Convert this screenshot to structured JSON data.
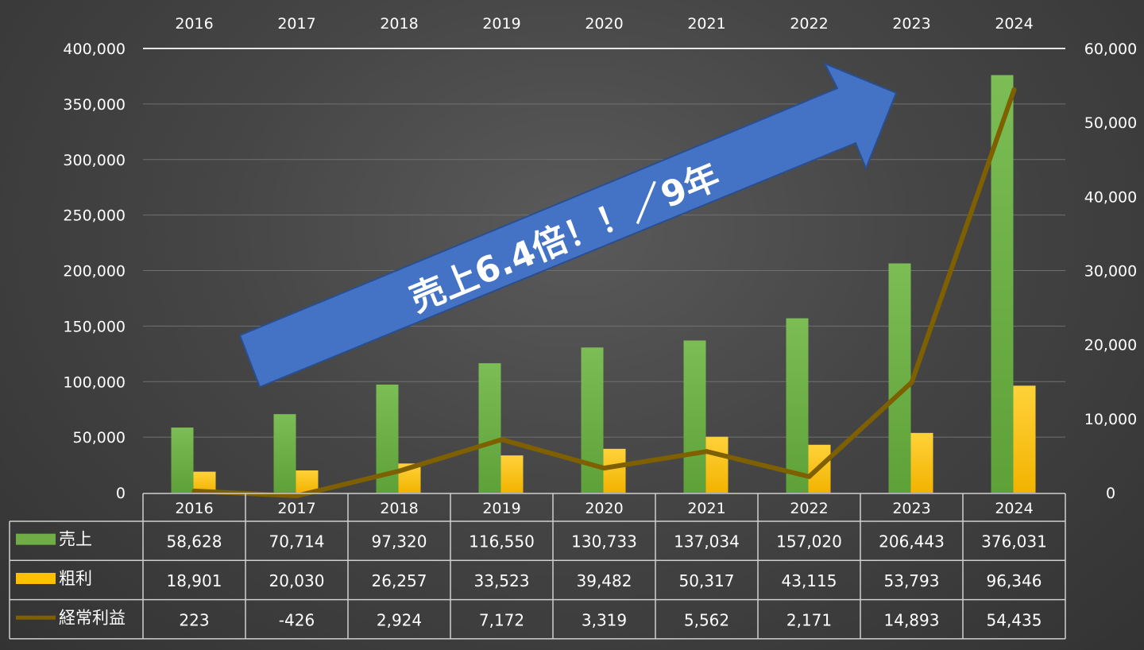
{
  "chart_data": {
    "type": "bar",
    "categories": [
      "2016",
      "2017",
      "2018",
      "2019",
      "2020",
      "2021",
      "2022",
      "2023",
      "2024"
    ],
    "series": [
      {
        "name": "売上",
        "type": "bar",
        "axis": "left",
        "color": "#70ad47",
        "values": [
          58628,
          70714,
          97320,
          116550,
          130733,
          137034,
          157020,
          206443,
          376031
        ]
      },
      {
        "name": "粗利",
        "type": "bar",
        "axis": "left",
        "color": "#ffc000",
        "values": [
          18901,
          20030,
          26257,
          33523,
          39482,
          50317,
          43115,
          53793,
          96346
        ]
      },
      {
        "name": "経常利益",
        "type": "line",
        "axis": "right",
        "color": "#7f6000",
        "values": [
          223,
          -426,
          2924,
          7172,
          3319,
          5562,
          2171,
          14893,
          54435
        ]
      }
    ],
    "left_ticks": [
      "400,000",
      "350,000",
      "300,000",
      "250,000",
      "200,000",
      "150,000",
      "100,000",
      "50,000",
      "0"
    ],
    "right_ticks": [
      "60,000",
      "50,000",
      "40,000",
      "30,000",
      "20,000",
      "10,000",
      "0"
    ],
    "ylim_left": [
      0,
      400000
    ],
    "ylim_right": [
      0,
      60000
    ],
    "table_rows": [
      {
        "label": "売上",
        "values": [
          "58,628",
          "70,714",
          "97,320",
          "116,550",
          "130,733",
          "137,034",
          "157,020",
          "206,443",
          "376,031"
        ]
      },
      {
        "label": "粗利",
        "values": [
          "18,901",
          "20,030",
          "26,257",
          "33,523",
          "39,482",
          "50,317",
          "43,115",
          "53,793",
          "96,346"
        ]
      },
      {
        "label": "経常利益",
        "values": [
          "223",
          "-426",
          "2,924",
          "7,172",
          "3,319",
          "5,562",
          "2,171",
          "14,893",
          "54,435"
        ]
      }
    ],
    "annotation": "売上6.4倍！！／9年",
    "grid": true
  }
}
